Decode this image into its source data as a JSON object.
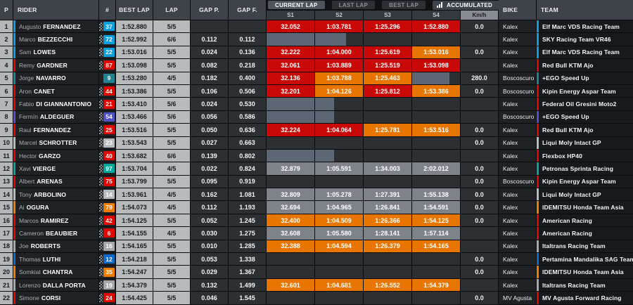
{
  "header": {
    "columns": {
      "p": "P",
      "rider": "RIDER",
      "num": "#",
      "best_lap": "BEST LAP",
      "lap": "LAP",
      "gap_p": "GAP P.",
      "gap_f": "GAP F.",
      "kmh": "Km/h",
      "bike": "BIKE",
      "team": "TEAM"
    },
    "tabs": [
      {
        "label": "CURRENT LAP",
        "active": true
      },
      {
        "label": "LAST LAP",
        "active": false
      },
      {
        "label": "BEST LAP",
        "active": false
      }
    ],
    "mode_dropdown": {
      "label": "ACCUMULATED",
      "icon": "bar-chart-icon"
    },
    "sectors": [
      "S1",
      "S2",
      "S3",
      "S4"
    ]
  },
  "colors": {
    "sector_red": "#c90808",
    "sector_orange": "#e87500",
    "sector_gray": "#7e838a",
    "progress_gray": "#5d6673"
  },
  "rows": [
    {
      "pos": "1",
      "first": "Augusto",
      "last": "FERNANDEZ",
      "num": "37",
      "color": "#0d9fdd",
      "flag": true,
      "best": "1:52.880",
      "lap": "5/5",
      "gap_p": "",
      "gap_f": "",
      "s": [
        {
          "v": "32.052",
          "t": "red"
        },
        {
          "v": "1:03.781",
          "t": "red"
        },
        {
          "v": "1:25.296",
          "t": "red"
        },
        {
          "v": "1:52.880",
          "t": "red"
        }
      ],
      "kmh": "0.0",
      "bike": "Kalex",
      "team": "Elf Marc VDS Racing Team"
    },
    {
      "pos": "2",
      "first": "Marco",
      "last": "BEZZECCHI",
      "num": "72",
      "color": "#0d9fdd",
      "flag": true,
      "best": "1:52.992",
      "lap": "6/6",
      "gap_p": "0.112",
      "gap_f": "0.112",
      "s": [
        {
          "t": "bar",
          "w": 100
        },
        {
          "t": "bar",
          "w": 65
        },
        null,
        null
      ],
      "kmh": "",
      "bike": "Kalex",
      "team": "SKY Racing Team VR46"
    },
    {
      "pos": "3",
      "first": "Sam",
      "last": "LOWES",
      "num": "22",
      "color": "#0d9fdd",
      "flag": true,
      "best": "1:53.016",
      "lap": "5/5",
      "gap_p": "0.024",
      "gap_f": "0.136",
      "s": [
        {
          "v": "32.222",
          "t": "red"
        },
        {
          "v": "1:04.000",
          "t": "red"
        },
        {
          "v": "1:25.619",
          "t": "red"
        },
        {
          "v": "1:53.016",
          "t": "orange"
        }
      ],
      "kmh": "0.0",
      "bike": "Kalex",
      "team": "Elf Marc VDS Racing Team"
    },
    {
      "pos": "4",
      "first": "Remy",
      "last": "GARDNER",
      "num": "87",
      "color": "#e10600",
      "flag": true,
      "best": "1:53.098",
      "lap": "5/5",
      "gap_p": "0.082",
      "gap_f": "0.218",
      "s": [
        {
          "v": "32.061",
          "t": "red"
        },
        {
          "v": "1:03.889",
          "t": "red"
        },
        {
          "v": "1:25.519",
          "t": "red"
        },
        {
          "v": "1:53.098",
          "t": "red"
        }
      ],
      "kmh": "",
      "bike": "Kalex",
      "team": "Red Bull KTM Ajo"
    },
    {
      "pos": "5",
      "first": "Jorge",
      "last": "NAVARRO",
      "num": "9",
      "color": "#1f8391",
      "flag": false,
      "best": "1:53.280",
      "lap": "4/5",
      "gap_p": "0.182",
      "gap_f": "0.400",
      "s": [
        {
          "v": "32.136",
          "t": "red"
        },
        {
          "v": "1:03.788",
          "t": "orange"
        },
        {
          "v": "1:25.463",
          "t": "orange"
        },
        {
          "t": "bar",
          "w": 78
        }
      ],
      "kmh": "280.0",
      "bike": "Boscoscuro",
      "team": "+EGO Speed Up"
    },
    {
      "pos": "6",
      "first": "Aron",
      "last": "CANET",
      "num": "44",
      "color": "#e10600",
      "flag": true,
      "best": "1:53.386",
      "lap": "5/5",
      "gap_p": "0.106",
      "gap_f": "0.506",
      "s": [
        {
          "v": "32.201",
          "t": "red"
        },
        {
          "v": "1:04.126",
          "t": "orange"
        },
        {
          "v": "1:25.812",
          "t": "red"
        },
        {
          "v": "1:53.386",
          "t": "orange"
        }
      ],
      "kmh": "0.0",
      "bike": "Boscoscuro",
      "team": "Kipin Energy Aspar Team"
    },
    {
      "pos": "7",
      "first": "Fabio",
      "last": "DI GIANNANTONIO",
      "num": "21",
      "color": "#e10600",
      "flag": true,
      "best": "1:53.410",
      "lap": "5/6",
      "gap_p": "0.024",
      "gap_f": "0.530",
      "s": [
        {
          "t": "bar",
          "w": 100
        },
        {
          "t": "bar",
          "w": 40
        },
        null,
        null
      ],
      "kmh": "",
      "bike": "Kalex",
      "team": "Federal Oil Gresini Moto2"
    },
    {
      "pos": "8",
      "first": "Fermín",
      "last": "ALDEGUER",
      "num": "54",
      "color": "#5050c8",
      "flag": true,
      "best": "1:53.466",
      "lap": "5/6",
      "gap_p": "0.056",
      "gap_f": "0.586",
      "s": [
        {
          "t": "bar",
          "w": 100
        },
        {
          "t": "bar",
          "w": 40
        },
        null,
        null
      ],
      "kmh": "",
      "bike": "Boscoscuro",
      "team": "+EGO Speed Up"
    },
    {
      "pos": "9",
      "first": "Raul",
      "last": "FERNANDEZ",
      "num": "25",
      "color": "#e10600",
      "flag": true,
      "best": "1:53.516",
      "lap": "5/5",
      "gap_p": "0.050",
      "gap_f": "0.636",
      "s": [
        {
          "v": "32.224",
          "t": "red"
        },
        {
          "v": "1:04.064",
          "t": "red"
        },
        {
          "v": "1:25.781",
          "t": "orange"
        },
        {
          "v": "1:53.516",
          "t": "orange"
        }
      ],
      "kmh": "0.0",
      "bike": "Kalex",
      "team": "Red Bull KTM Ajo"
    },
    {
      "pos": "10",
      "first": "Marcel",
      "last": "SCHROTTER",
      "num": "23",
      "color": "#b9bcbf",
      "flag": true,
      "best": "1:53.543",
      "lap": "5/5",
      "gap_p": "0.027",
      "gap_f": "0.663",
      "s": [
        null,
        null,
        null,
        null
      ],
      "kmh": "0.0",
      "bike": "Kalex",
      "team": "Liqui Moly Intact GP"
    },
    {
      "pos": "11",
      "first": "Hector",
      "last": "GARZO",
      "num": "40",
      "color": "#e10600",
      "flag": true,
      "best": "1:53.682",
      "lap": "6/6",
      "gap_p": "0.139",
      "gap_f": "0.802",
      "s": [
        {
          "t": "bar",
          "w": 100
        },
        {
          "t": "bar",
          "w": 40
        },
        null,
        null
      ],
      "kmh": "",
      "bike": "Kalex",
      "team": "Flexbox HP40"
    },
    {
      "pos": "12",
      "first": "Xavi",
      "last": "VIERGE",
      "num": "97",
      "color": "#00a79b",
      "flag": true,
      "best": "1:53.704",
      "lap": "4/5",
      "gap_p": "0.022",
      "gap_f": "0.824",
      "s": [
        {
          "v": "32.879",
          "t": "gray"
        },
        {
          "v": "1:05.591",
          "t": "gray"
        },
        {
          "v": "1:34.003",
          "t": "gray"
        },
        {
          "v": "2:02.012",
          "t": "gray"
        }
      ],
      "kmh": "0.0",
      "bike": "Kalex",
      "team": "Petronas Sprinta Racing"
    },
    {
      "pos": "13",
      "first": "Albert",
      "last": "ARENAS",
      "num": "75",
      "color": "#e10600",
      "flag": true,
      "best": "1:53.799",
      "lap": "5/5",
      "gap_p": "0.095",
      "gap_f": "0.919",
      "s": [
        null,
        null,
        null,
        null
      ],
      "kmh": "0.0",
      "bike": "Boscoscuro",
      "team": "Kipin Energy Aspar Team"
    },
    {
      "pos": "14",
      "first": "Tony",
      "last": "ARBOLINO",
      "num": "14",
      "color": "#b9bcbf",
      "flag": true,
      "best": "1:53.961",
      "lap": "4/5",
      "gap_p": "0.162",
      "gap_f": "1.081",
      "s": [
        {
          "v": "32.809",
          "t": "gray"
        },
        {
          "v": "1:05.278",
          "t": "gray"
        },
        {
          "v": "1:27.391",
          "t": "gray"
        },
        {
          "v": "1:55.138",
          "t": "gray"
        }
      ],
      "kmh": "0.0",
      "bike": "Kalex",
      "team": "Liqui Moly Intact GP"
    },
    {
      "pos": "15",
      "first": "Ai",
      "last": "OGURA",
      "num": "79",
      "color": "#ef7d00",
      "flag": true,
      "best": "1:54.073",
      "lap": "4/5",
      "gap_p": "0.112",
      "gap_f": "1.193",
      "s": [
        {
          "v": "32.694",
          "t": "gray"
        },
        {
          "v": "1:04.965",
          "t": "gray"
        },
        {
          "v": "1:26.841",
          "t": "gray"
        },
        {
          "v": "1:54.591",
          "t": "gray"
        }
      ],
      "kmh": "0.0",
      "bike": "Kalex",
      "team": "IDEMITSU Honda Team Asia"
    },
    {
      "pos": "16",
      "first": "Marcos",
      "last": "RAMIREZ",
      "num": "42",
      "color": "#e10600",
      "flag": true,
      "best": "1:54.125",
      "lap": "5/5",
      "gap_p": "0.052",
      "gap_f": "1.245",
      "s": [
        {
          "v": "32.400",
          "t": "orange"
        },
        {
          "v": "1:04.509",
          "t": "orange"
        },
        {
          "v": "1:26.366",
          "t": "orange"
        },
        {
          "v": "1:54.125",
          "t": "orange"
        }
      ],
      "kmh": "0.0",
      "bike": "Kalex",
      "team": "American Racing"
    },
    {
      "pos": "17",
      "first": "Cameron",
      "last": "BEAUBIER",
      "num": "6",
      "color": "#e10600",
      "flag": true,
      "best": "1:54.155",
      "lap": "4/5",
      "gap_p": "0.030",
      "gap_f": "1.275",
      "s": [
        {
          "v": "32.608",
          "t": "gray"
        },
        {
          "v": "1:05.580",
          "t": "gray"
        },
        {
          "v": "1:28.141",
          "t": "gray"
        },
        {
          "v": "1:57.114",
          "t": "gray"
        }
      ],
      "kmh": "",
      "bike": "Kalex",
      "team": "American Racing"
    },
    {
      "pos": "18",
      "first": "Joe",
      "last": "ROBERTS",
      "num": "16",
      "color": "#a6a9ac",
      "flag": true,
      "best": "1:54.165",
      "lap": "5/5",
      "gap_p": "0.010",
      "gap_f": "1.285",
      "s": [
        {
          "v": "32.388",
          "t": "orange"
        },
        {
          "v": "1:04.594",
          "t": "orange"
        },
        {
          "v": "1:26.379",
          "t": "orange"
        },
        {
          "v": "1:54.165",
          "t": "orange"
        }
      ],
      "kmh": "",
      "bike": "Kalex",
      "team": "Italtrans Racing Team"
    },
    {
      "pos": "19",
      "first": "Thomas",
      "last": "LUTHI",
      "num": "12",
      "color": "#0e6ac8",
      "flag": true,
      "best": "1:54.218",
      "lap": "5/5",
      "gap_p": "0.053",
      "gap_f": "1.338",
      "s": [
        null,
        null,
        null,
        null
      ],
      "kmh": "0.0",
      "bike": "Kalex",
      "team": "Pertamina Mandalika SAG Team"
    },
    {
      "pos": "20",
      "first": "Somkiat",
      "last": "CHANTRA",
      "num": "35",
      "color": "#ef7d00",
      "flag": true,
      "best": "1:54.247",
      "lap": "5/5",
      "gap_p": "0.029",
      "gap_f": "1.367",
      "s": [
        null,
        null,
        null,
        null
      ],
      "kmh": "0.0",
      "bike": "Kalex",
      "team": "IDEMITSU Honda Team Asia"
    },
    {
      "pos": "21",
      "first": "Lorenzo",
      "last": "DALLA PORTA",
      "num": "19",
      "color": "#a6a9ac",
      "flag": true,
      "best": "1:54.379",
      "lap": "5/5",
      "gap_p": "0.132",
      "gap_f": "1.499",
      "s": [
        {
          "v": "32.601",
          "t": "orange"
        },
        {
          "v": "1:04.681",
          "t": "orange"
        },
        {
          "v": "1:26.552",
          "t": "orange"
        },
        {
          "v": "1:54.379",
          "t": "orange"
        }
      ],
      "kmh": "",
      "bike": "Kalex",
      "team": "Italtrans Racing Team"
    },
    {
      "pos": "22",
      "first": "Simone",
      "last": "CORSI",
      "num": "24",
      "color": "#e10600",
      "flag": true,
      "best": "1:54.425",
      "lap": "5/5",
      "gap_p": "0.046",
      "gap_f": "1.545",
      "s": [
        null,
        null,
        null,
        null
      ],
      "kmh": "0.0",
      "bike": "MV Agusta",
      "team": "MV Agusta Forward Racing"
    }
  ]
}
